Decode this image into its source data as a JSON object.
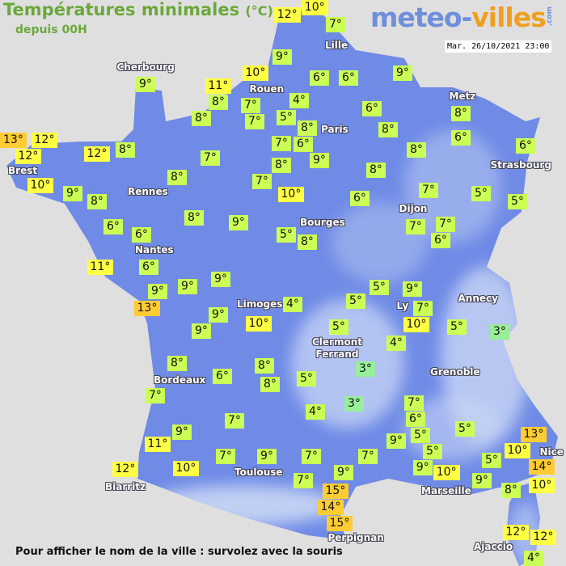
{
  "header": {
    "title": "Températures minimales",
    "title_unit": "(°C)",
    "subtitle": "depuis 00H",
    "logo_part1": "meteo-",
    "logo_part2": "villes",
    "logo_suffix": ".com",
    "datetime": "Mar. 26/10/2021 23:00"
  },
  "footer": "Pour afficher le nom de la ville : survolez avec la souris",
  "colors": {
    "land": "#6f8be6",
    "mountains": "#c9d6f5",
    "sea": "#e0dfdf",
    "temp_3": "#99ee99",
    "temp_4_9": "#ccff55",
    "temp_10_12": "#ffff44",
    "temp_13_plus": "#ffcc33",
    "title": "#6aa83a"
  },
  "cities": [
    "Cherbourg",
    "Rouen",
    "Lille",
    "Paris",
    "Metz",
    "Strasbourg",
    "Brest",
    "Rennes",
    "Dijon",
    "Bourges",
    "Nantes",
    "Annecy",
    "Limoges",
    "Ly",
    "Clermont Ferrand",
    "Grenoble",
    "Bordeaux",
    "Nice",
    "Toulouse",
    "Biarritz",
    "Marseille",
    "Perpignan",
    "Ajaccio"
  ],
  "temperatures": [
    "12°",
    "10°",
    "7°",
    "9°",
    "10°",
    "6°",
    "6°",
    "9°",
    "9°",
    "11°",
    "8°",
    "7°",
    "4°",
    "8°",
    "7°",
    "5°",
    "6°",
    "8°",
    "8°",
    "8°",
    "6°",
    "13°",
    "12°",
    "12°",
    "12°",
    "8°",
    "7°",
    "6°",
    "9°",
    "8°",
    "6°",
    "7°",
    "8°",
    "8°",
    "10°",
    "8°",
    "7°",
    "9°",
    "8°",
    "10°",
    "6°",
    "7°",
    "5°",
    "5°",
    "6°",
    "6°",
    "8°",
    "9°",
    "7°",
    "7°",
    "5°",
    "8°",
    "6°",
    "11°",
    "6°",
    "9°",
    "9°",
    "9°",
    "5°",
    "9°",
    "13°",
    "4°",
    "5°",
    "7°",
    "10°",
    "9°",
    "9°",
    "10°",
    "5°",
    "5°",
    "3°",
    "4°",
    "3°",
    "8°",
    "6°",
    "8°",
    "8°",
    "5°",
    "7°",
    "3°",
    "4°",
    "7°",
    "6°",
    "7°",
    "9°",
    "5°",
    "5°",
    "9°",
    "13°",
    "11°",
    "10°",
    "7°",
    "9°",
    "7°",
    "7°",
    "5°",
    "5°",
    "14°",
    "12°",
    "10°",
    "9°",
    "10°",
    "9°",
    "7°",
    "9°",
    "10°",
    "8°",
    "15°",
    "14°",
    "15°",
    "12°",
    "12°",
    "4°"
  ]
}
